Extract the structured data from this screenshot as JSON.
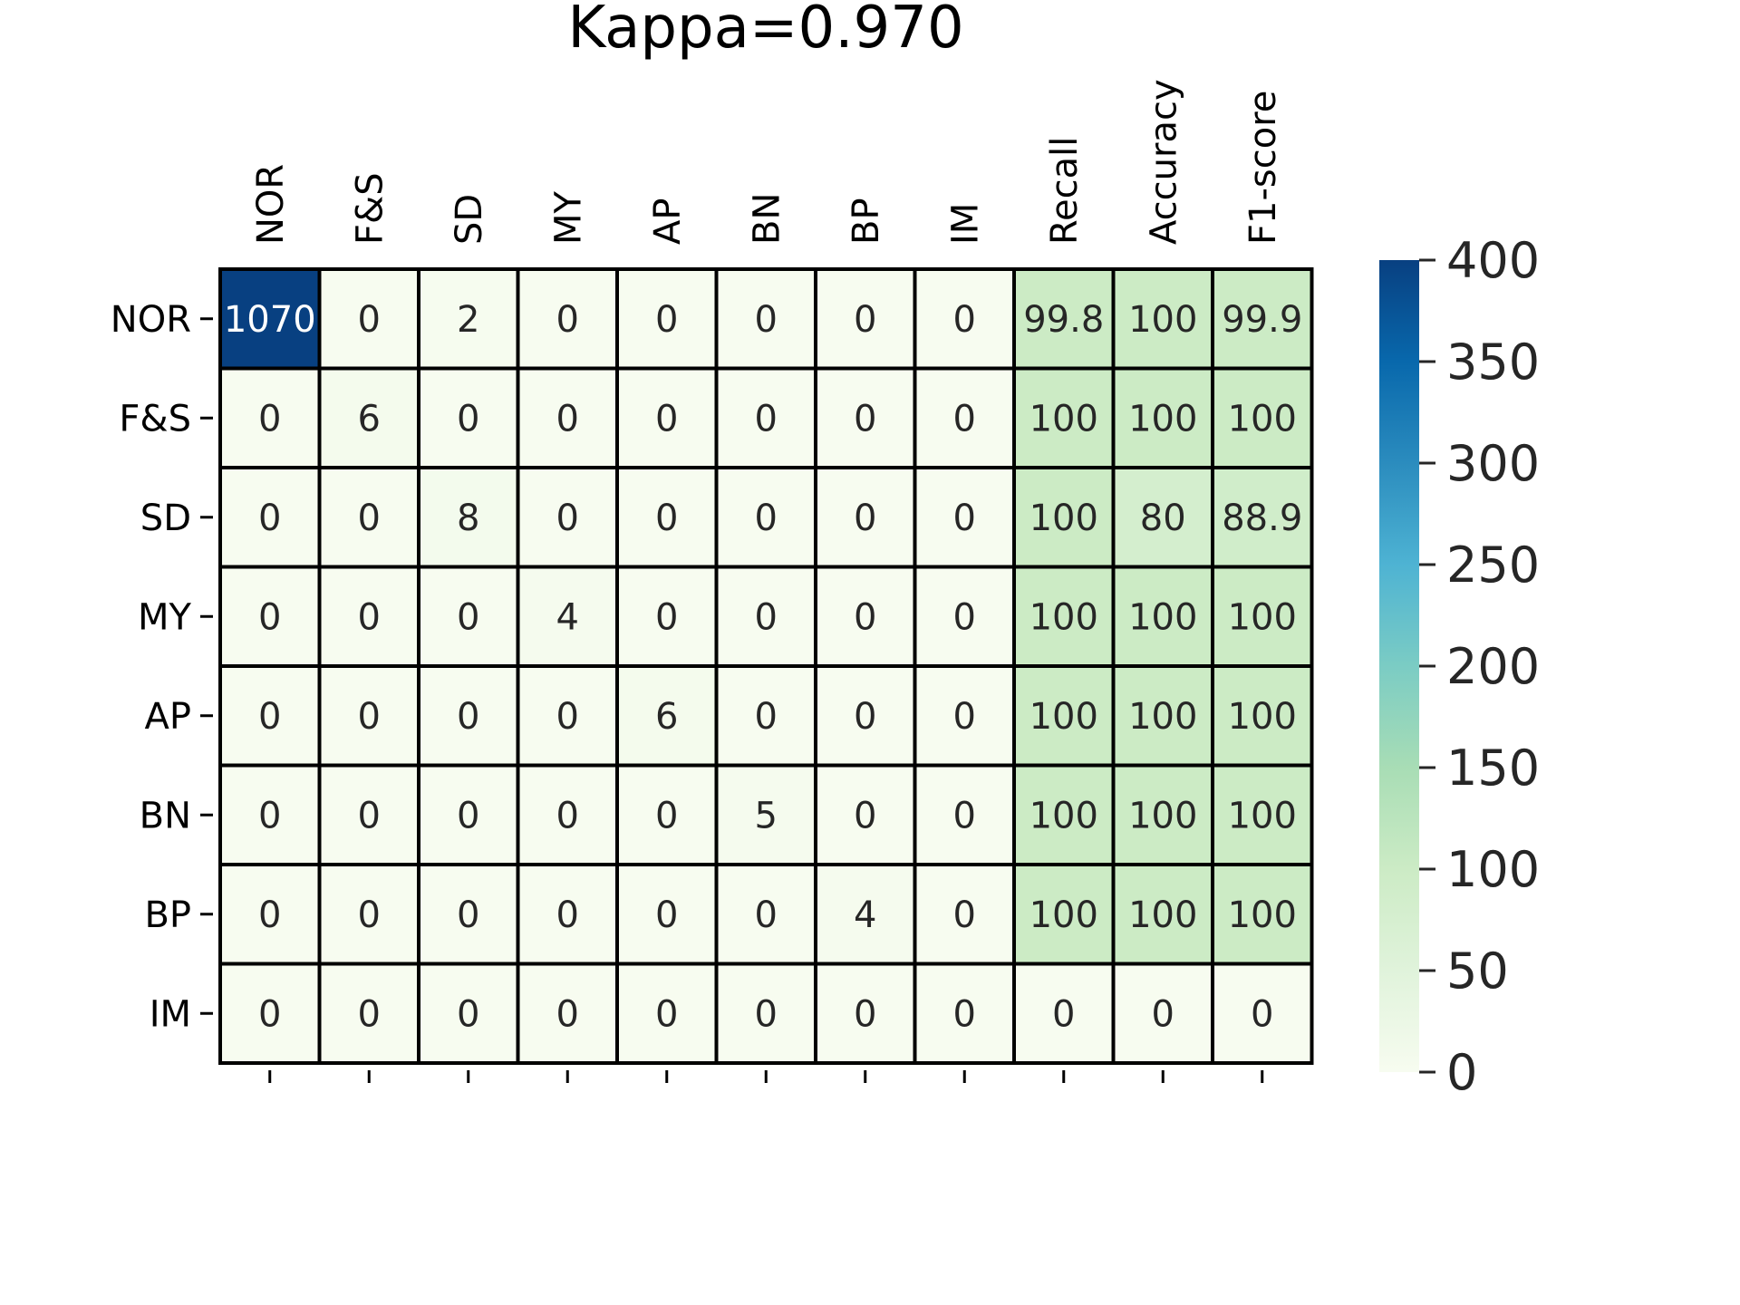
{
  "chart_data": {
    "type": "heatmap",
    "title": "Kappa=0.970",
    "xlabel": "",
    "ylabel": "",
    "x_labels": [
      "NOR",
      "F&S",
      "SD",
      "MY",
      "AP",
      "BN",
      "BP",
      "IM",
      "Recall",
      "Accuracy",
      "F1-score"
    ],
    "y_labels": [
      "NOR",
      "F&S",
      "SD",
      "MY",
      "AP",
      "BN",
      "BP",
      "IM"
    ],
    "cells": [
      [
        "1070",
        "0",
        "2",
        "0",
        "0",
        "0",
        "0",
        "0",
        "99.8",
        "100",
        "99.9"
      ],
      [
        "0",
        "6",
        "0",
        "0",
        "0",
        "0",
        "0",
        "0",
        "100",
        "100",
        "100"
      ],
      [
        "0",
        "0",
        "8",
        "0",
        "0",
        "0",
        "0",
        "0",
        "100",
        "80",
        "88.9"
      ],
      [
        "0",
        "0",
        "0",
        "4",
        "0",
        "0",
        "0",
        "0",
        "100",
        "100",
        "100"
      ],
      [
        "0",
        "0",
        "0",
        "0",
        "6",
        "0",
        "0",
        "0",
        "100",
        "100",
        "100"
      ],
      [
        "0",
        "0",
        "0",
        "0",
        "0",
        "5",
        "0",
        "0",
        "100",
        "100",
        "100"
      ],
      [
        "0",
        "0",
        "0",
        "0",
        "0",
        "0",
        "4",
        "0",
        "100",
        "100",
        "100"
      ],
      [
        "0",
        "0",
        "0",
        "0",
        "0",
        "0",
        "0",
        "0",
        "0",
        "0",
        "0"
      ]
    ],
    "colorbar": {
      "min": 0,
      "max": 400,
      "ticks": [
        "0",
        "50",
        "100",
        "150",
        "200",
        "250",
        "300",
        "350",
        "400"
      ],
      "colormap": "GnBu",
      "stops": [
        "#f7fcf0",
        "#e0f3db",
        "#ccebc5",
        "#a8ddb5",
        "#7bccc4",
        "#4eb3d3",
        "#2b8cbe",
        "#0868ac",
        "#084081"
      ]
    },
    "grid": true,
    "legend": "colorbar-right"
  }
}
